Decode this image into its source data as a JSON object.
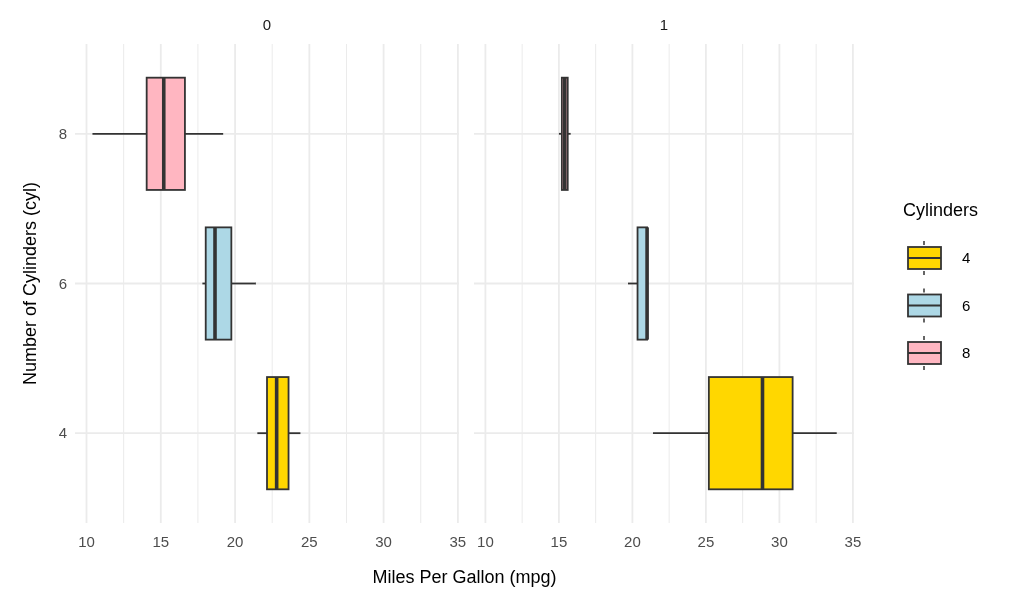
{
  "chart_data": [
    {
      "type": "box",
      "orientation": "horizontal",
      "title": "0",
      "xlabel": "Miles Per Gallon (mpg)",
      "ylabel": "Number of Cylinders (cyl)",
      "categories": [
        "8",
        "6",
        "4"
      ],
      "xlim": [
        9.225,
        35.075
      ],
      "xticks": [
        10,
        {
          "value": 12.5,
          "label": null
        },
        15,
        {
          "value": 17.5,
          "label": null
        },
        20,
        {
          "value": 22.5,
          "label": null
        },
        25,
        {
          "value": 27.5,
          "label": null
        },
        30,
        {
          "value": 32.5,
          "label": null
        },
        35
      ],
      "grid": true,
      "legend": "right",
      "legend_title": "Cylinders",
      "series": [
        {
          "name": "4",
          "color": "#ffd700",
          "boxes": [
            null,
            null,
            {
              "low": 21.5,
              "q1": 22.15,
              "median": 22.8,
              "q3": 23.6,
              "high": 24.4
            }
          ]
        },
        {
          "name": "6",
          "color": "#add8e6",
          "boxes": [
            null,
            {
              "low": 17.8,
              "q1": 18.025,
              "median": 18.65,
              "q3": 19.75,
              "high": 21.4
            },
            null
          ]
        },
        {
          "name": "8",
          "color": "#ffb6c1",
          "boxes": [
            {
              "low": 10.4,
              "q1": 14.05,
              "median": 15.2,
              "q3": 16.625,
              "high": 19.2
            },
            null,
            null
          ]
        }
      ]
    },
    {
      "type": "box",
      "orientation": "horizontal",
      "title": "1",
      "categories": [
        "8",
        "6",
        "4"
      ],
      "xlim": [
        9.225,
        35.075
      ],
      "xticks": [
        10,
        {
          "value": 12.5,
          "label": null
        },
        15,
        {
          "value": 17.5,
          "label": null
        },
        20,
        {
          "value": 22.5,
          "label": null
        },
        25,
        {
          "value": 27.5,
          "label": null
        },
        30,
        {
          "value": 32.5,
          "label": null
        },
        35
      ],
      "grid": true,
      "tick_labels": "x",
      "series": [
        {
          "color": "#ffd700",
          "boxes": [
            null,
            null,
            {
              "low": 21.4,
              "q1": 25.2,
              "median": 28.85,
              "q3": 30.9,
              "high": 33.9
            }
          ]
        },
        {
          "color": "#add8e6",
          "boxes": [
            null,
            {
              "low": 19.7,
              "q1": 20.35,
              "median": 21,
              "q3": 21,
              "high": 21
            },
            null
          ]
        },
        {
          "color": "#ffb6c1",
          "boxes": [
            {
              "low": 15,
              "q1": 15.2,
              "median": 15.4,
              "q3": 15.6,
              "high": 15.8
            },
            null,
            null
          ]
        }
      ]
    }
  ]
}
